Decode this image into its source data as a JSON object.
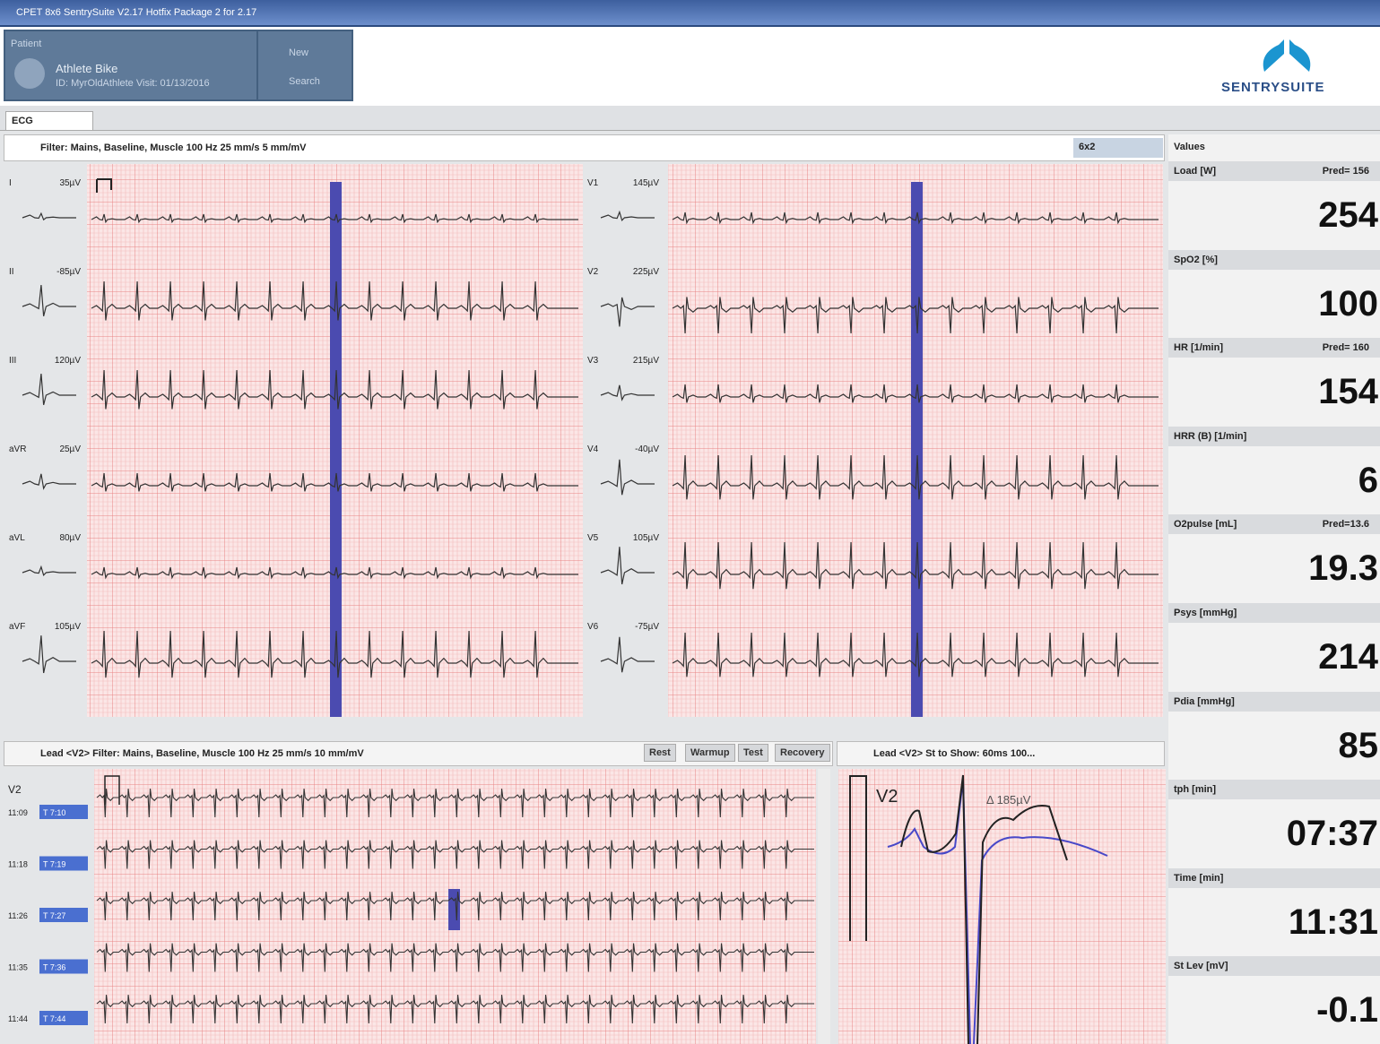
{
  "window": {
    "title": "CPET 8x6 SentrySuite V2.17 Hotfix Package 2 for 2.17"
  },
  "patient": {
    "heading": "Patient",
    "name": "Athlete Bike",
    "details": "ID: MyrOldAthlete Visit: 01/13/2016",
    "actions": [
      "New",
      "Search"
    ]
  },
  "logo": "SENTRYSUITE",
  "tab": "ECG",
  "ecg_toolbar": {
    "filter": "Filter: Mains, Baseline, Muscle 100 Hz 25 mm/s 5 mm/mV",
    "layout": "6x2"
  },
  "leads": [
    {
      "name": "I",
      "amplitude": "35µV"
    },
    {
      "name": "II",
      "amplitude": "-85µV"
    },
    {
      "name": "III",
      "amplitude": "120µV"
    },
    {
      "name": "aVR",
      "amplitude": "25µV"
    },
    {
      "name": "aVL",
      "amplitude": "80µV"
    },
    {
      "name": "aVF",
      "amplitude": "105µV"
    },
    {
      "name": "V1",
      "amplitude": "145µV"
    },
    {
      "name": "V2",
      "amplitude": "225µV"
    },
    {
      "name": "V3",
      "amplitude": "215µV"
    },
    {
      "name": "V4",
      "amplitude": "-40µV"
    },
    {
      "name": "V5",
      "amplitude": "105µV"
    },
    {
      "name": "V6",
      "amplitude": "-75µV"
    }
  ],
  "detail": {
    "toolbar": "Lead <V2> Filter: Mains, Baseline, Muscle 100 Hz 25 mm/s 10 mm/mV",
    "phases": [
      "Rest",
      "Warmup",
      "Test",
      "Recovery"
    ],
    "lead": "V2",
    "rows": [
      {
        "time": "11:09",
        "tag": "T 7:10"
      },
      {
        "time": "11:18",
        "tag": "T 7:19"
      },
      {
        "time": "11:26",
        "tag": "T 7:27"
      },
      {
        "time": "11:35",
        "tag": "T 7:36"
      },
      {
        "time": "11:44",
        "tag": "T 7:44"
      }
    ]
  },
  "st": {
    "toolbar": "Lead <V2> St to Show: 60ms 100...",
    "lead": "V2",
    "delta": "Δ 185µV"
  },
  "values": {
    "heading": "Values",
    "items": [
      {
        "label": "Load [W]",
        "pred": "Pred= 156",
        "value": "254"
      },
      {
        "label": "SpO2 [%]",
        "value": "100"
      },
      {
        "label": "HR [1/min]",
        "pred": "Pred= 160",
        "value": "154"
      },
      {
        "label": "HRR (B) [1/min]",
        "value": "6"
      },
      {
        "label": "O2pulse [mL]",
        "pred": "Pred=13.6",
        "value": "19.3"
      },
      {
        "label": "Psys [mmHg]",
        "value": "214"
      },
      {
        "label": "Pdia [mmHg]",
        "value": "85"
      },
      {
        "label": "tph [min]",
        "value": "07:37"
      },
      {
        "label": "Time [min]",
        "value": "11:31"
      },
      {
        "label": "St Lev [mV]",
        "value": "-0.1"
      }
    ]
  }
}
